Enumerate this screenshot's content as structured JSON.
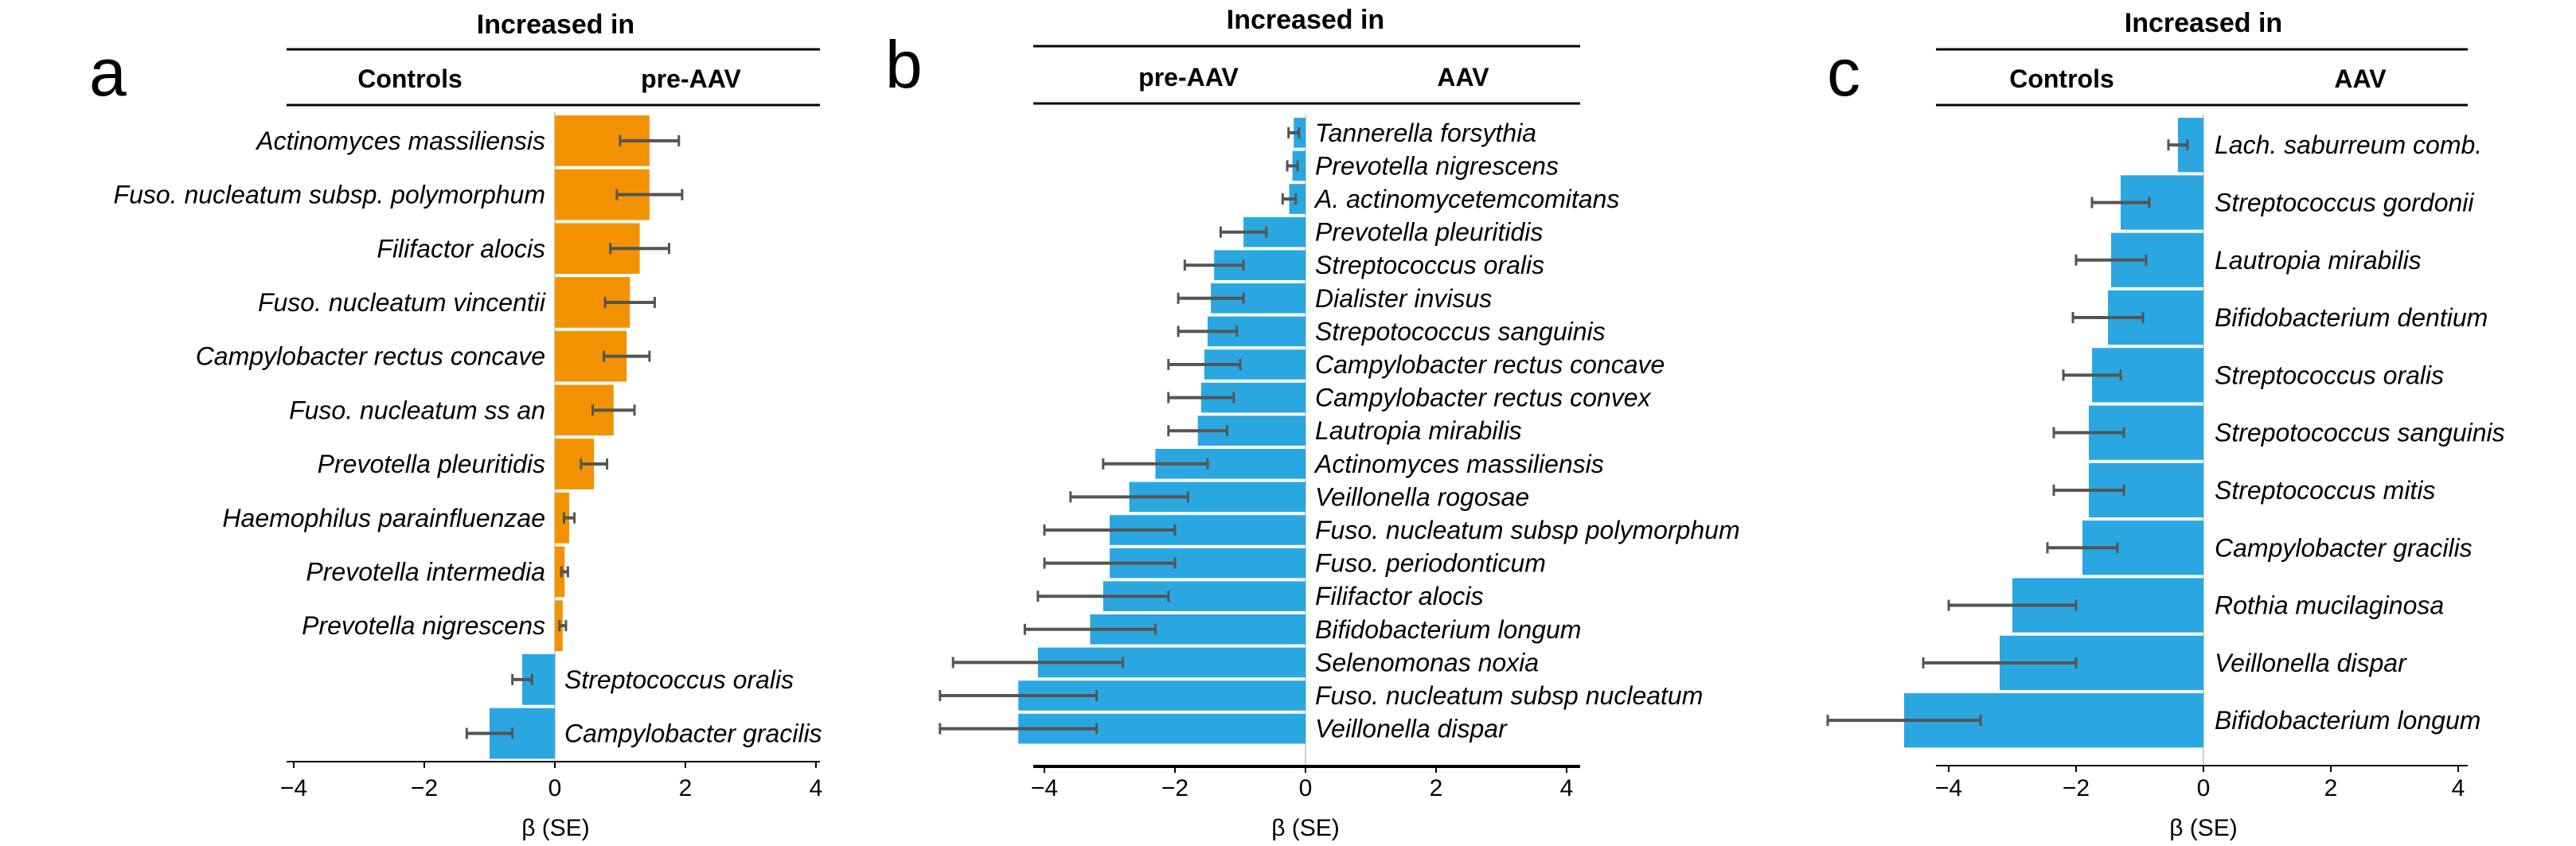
{
  "colors": {
    "increase": "#F39200",
    "decrease": "#2AA7E1",
    "error": "#555555",
    "axis": "#000000"
  },
  "chart_data": [
    {
      "type": "bar",
      "panel": "a",
      "header": "Increased in",
      "group_left": "Controls",
      "group_right": "pre-AAV",
      "xlabel": "β (SE)",
      "xlim": [
        -4,
        4
      ],
      "xticks": [
        -4,
        -2,
        0,
        2,
        4
      ],
      "tick_labels": [
        "−4",
        "−2",
        "0",
        "2",
        "4"
      ],
      "categories": [
        "Actinomyces massiliensis",
        "Fuso. nucleatum subsp. polymorphum",
        "Filifactor alocis",
        "Fuso. nucleatum vincentii",
        "Campylobacter rectus concave",
        "Fuso. nucleatum ss an",
        "Prevotella pleuritidis",
        "Haemophilus parainfluenzae",
        "Prevotella intermedia",
        "Prevotella nigrescens",
        "Streptococcus oralis",
        "Campylobacter gracilis"
      ],
      "values": [
        1.45,
        1.45,
        1.3,
        1.15,
        1.1,
        0.9,
        0.6,
        0.22,
        0.15,
        0.12,
        -0.5,
        -1.0
      ],
      "se": [
        0.45,
        0.5,
        0.45,
        0.38,
        0.35,
        0.32,
        0.2,
        0.08,
        0.05,
        0.05,
        0.15,
        0.35
      ]
    },
    {
      "type": "bar",
      "panel": "b",
      "header": "Increased in",
      "group_left": "pre-AAV",
      "group_right": "AAV",
      "xlabel": "β (SE)",
      "xlim": [
        -4,
        4
      ],
      "xticks": [
        -4,
        -2,
        0,
        2,
        4
      ],
      "tick_labels": [
        "−4",
        "−2",
        "0",
        "2",
        "4"
      ],
      "categories": [
        "Tannerella forsythia",
        "Prevotella nigrescens",
        "A. actinomycetemcomitans",
        "Prevotella pleuritidis",
        "Streptococcus oralis",
        "Dialister invisus",
        "Strepotococcus sanguinis",
        "Campylobacter rectus concave",
        "Campylobacter rectus convex",
        "Lautropia mirabilis",
        "Actinomyces massiliensis",
        "Veillonella rogosae",
        "Fuso. nucleatum subsp polymorphum",
        "Fuso. periodonticum",
        "Filifactor alocis",
        "Bifidobacterium longum",
        "Selenomonas noxia",
        "Fuso. nucleatum subsp nucleatum",
        "Veillonella dispar"
      ],
      "values": [
        -0.18,
        -0.2,
        -0.25,
        -0.95,
        -1.4,
        -1.45,
        -1.5,
        -1.55,
        -1.6,
        -1.65,
        -2.3,
        -2.7,
        -3.0,
        -3.0,
        -3.1,
        -3.3,
        -4.1,
        -4.4,
        -4.4
      ],
      "se": [
        0.08,
        0.08,
        0.1,
        0.35,
        0.45,
        0.5,
        0.45,
        0.55,
        0.5,
        0.45,
        0.8,
        0.9,
        1.0,
        1.0,
        1.0,
        1.0,
        1.3,
        1.2,
        1.2
      ]
    },
    {
      "type": "bar",
      "panel": "c",
      "header": "Increased in",
      "group_left": "Controls",
      "group_right": "AAV",
      "xlabel": "β (SE)",
      "xlim": [
        -4,
        4
      ],
      "xticks": [
        -4,
        -2,
        0,
        2,
        4
      ],
      "tick_labels": [
        "−4",
        "−2",
        "0",
        "2",
        "4"
      ],
      "categories": [
        "Lach. saburreum comb.",
        "Streptococcus gordonii",
        "Lautropia mirabilis",
        "Bifidobacterium dentium",
        "Streptococcus oralis",
        "Strepotococcus sanguinis",
        "Streptococcus mitis",
        "Campylobacter gracilis",
        "Rothia mucilaginosa",
        "Veillonella dispar",
        "Bifidobacterium longum"
      ],
      "values": [
        -0.4,
        -1.3,
        -1.45,
        -1.5,
        -1.75,
        -1.8,
        -1.8,
        -1.9,
        -3.0,
        -3.2,
        -4.7
      ],
      "se": [
        0.15,
        0.45,
        0.55,
        0.55,
        0.45,
        0.55,
        0.55,
        0.55,
        1.0,
        1.2,
        1.2
      ]
    }
  ]
}
